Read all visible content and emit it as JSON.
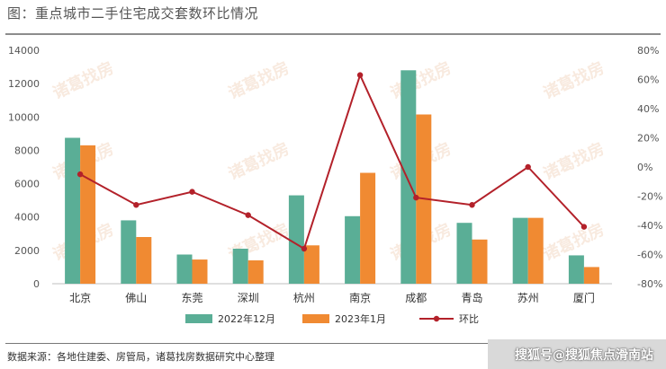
{
  "title": "图：重点城市二手住宅成交套数环比情况",
  "source": "数据来源：各地住建委、房管局，诸葛找房数据研究中心整理",
  "watermark": "搜狐号@搜狐焦点滑南站",
  "background_watermark": "诸葛找房",
  "colors": {
    "series1": "#5aae96",
    "series2": "#f08a32",
    "series3": "#b3212a",
    "axis_text": "#555555"
  },
  "chart_data": {
    "type": "bar",
    "categories": [
      "北京",
      "佛山",
      "东莞",
      "深圳",
      "杭州",
      "南京",
      "成都",
      "青岛",
      "苏州",
      "厦门"
    ],
    "series": [
      {
        "name": "2022年12月",
        "type": "bar",
        "axis": "left",
        "values": [
          8750,
          3800,
          1750,
          2100,
          5300,
          4050,
          12800,
          3650,
          3950,
          1700
        ]
      },
      {
        "name": "2023年1月",
        "type": "bar",
        "axis": "left",
        "values": [
          8300,
          2800,
          1450,
          1400,
          2300,
          6650,
          10150,
          2650,
          3950,
          1000
        ]
      },
      {
        "name": "环比",
        "type": "line",
        "axis": "right",
        "values": [
          -5,
          -26,
          -17,
          -33,
          -56,
          63,
          -21,
          -26,
          0,
          -41
        ]
      }
    ],
    "ylim": [
      0,
      14000
    ],
    "yticks": [
      "0",
      "2000",
      "4000",
      "6000",
      "8000",
      "10000",
      "12000",
      "14000"
    ],
    "y2lim": [
      -80,
      80
    ],
    "y2ticks": [
      "-80%",
      "-60%",
      "-40%",
      "-20%",
      "0%",
      "20%",
      "40%",
      "60%",
      "80%"
    ],
    "legend": "bottom",
    "grid": false
  }
}
